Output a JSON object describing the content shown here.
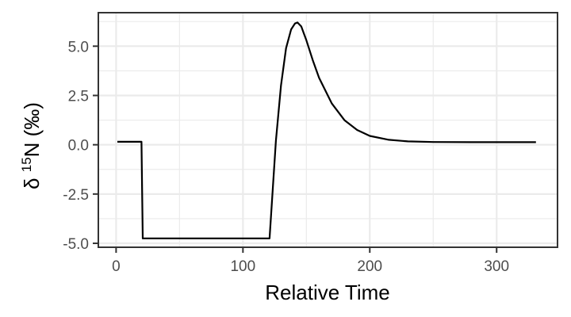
{
  "chart_data": {
    "type": "line",
    "title": "",
    "xlabel": "Relative Time",
    "ylabel": {
      "prefix": "δ",
      "superscript": "15",
      "main": "N (‰)"
    },
    "xlim": [
      -14,
      348
    ],
    "ylim": [
      -5.2,
      6.7
    ],
    "x_ticks": [
      0,
      100,
      200,
      300
    ],
    "x_tick_labels": [
      "0",
      "100",
      "200",
      "300"
    ],
    "y_ticks": [
      -5.0,
      -2.5,
      0.0,
      2.5,
      5.0
    ],
    "y_tick_labels": [
      "-5.0",
      "-2.5",
      "0.0",
      "2.5",
      "5.0"
    ],
    "grid": true,
    "legend": "none",
    "colors": {
      "line": "#000000",
      "grid": "#ebebeb",
      "panel_border": "#333333"
    },
    "series": [
      {
        "x": [
          1,
          20,
          21,
          120,
          121,
          126,
          130,
          134,
          138,
          141,
          143,
          146,
          150,
          155,
          160,
          170,
          180,
          190,
          200,
          215,
          230,
          250,
          280,
          310,
          331
        ],
        "y": [
          0.15,
          0.15,
          -4.75,
          -4.75,
          -4.75,
          0.2,
          3.0,
          4.9,
          5.85,
          6.15,
          6.2,
          6.0,
          5.3,
          4.3,
          3.4,
          2.1,
          1.25,
          0.75,
          0.45,
          0.25,
          0.17,
          0.14,
          0.13,
          0.13,
          0.13
        ]
      }
    ]
  }
}
